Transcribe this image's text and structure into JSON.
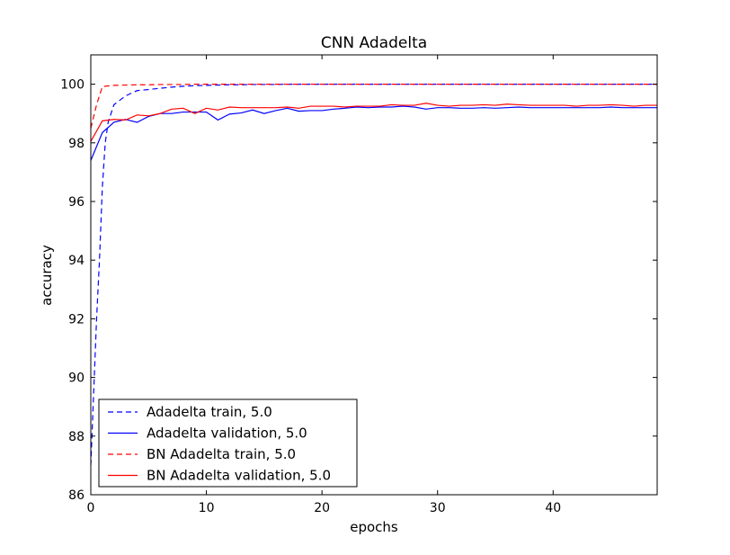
{
  "chart_data": {
    "type": "line",
    "title": "CNN Adadelta",
    "xlabel": "epochs",
    "ylabel": "accuracy",
    "xlim": [
      0,
      49
    ],
    "ylim": [
      86,
      101
    ],
    "xticks": [
      0,
      10,
      20,
      30,
      40
    ],
    "yticks": [
      86,
      88,
      90,
      92,
      94,
      96,
      98,
      100
    ],
    "legend_position": "lower-left",
    "grid": false,
    "x": [
      0,
      1,
      2,
      3,
      4,
      5,
      6,
      7,
      8,
      9,
      10,
      11,
      12,
      13,
      14,
      15,
      16,
      17,
      18,
      19,
      20,
      21,
      22,
      23,
      24,
      25,
      26,
      27,
      28,
      29,
      30,
      31,
      32,
      33,
      34,
      35,
      36,
      37,
      38,
      39,
      40,
      41,
      42,
      43,
      44,
      45,
      46,
      47,
      48,
      49
    ],
    "series": [
      {
        "name": "Adadelta train, 5.0",
        "color": "#0000ff",
        "style": "dashed",
        "x": [
          0,
          0.25,
          0.5,
          0.75,
          1,
          1.25,
          1.5,
          2,
          3,
          4,
          5,
          6,
          7,
          8,
          9,
          10,
          11,
          12,
          13,
          14,
          15,
          16,
          17,
          18,
          19,
          20,
          21,
          22,
          23,
          24,
          25,
          26,
          27,
          28,
          29,
          30,
          31,
          32,
          33,
          34,
          35,
          36,
          37,
          38,
          39,
          40,
          41,
          42,
          43,
          44,
          45,
          46,
          47,
          48,
          49
        ],
        "values": [
          87.0,
          89.5,
          92.0,
          94.0,
          96.5,
          98.0,
          98.7,
          99.3,
          99.6,
          99.78,
          99.82,
          99.86,
          99.9,
          99.93,
          99.95,
          99.96,
          99.97,
          99.98,
          99.98,
          99.99,
          99.99,
          99.99,
          100.0,
          100.0,
          100.0,
          100.0,
          100.0,
          100.0,
          100.0,
          100.0,
          100.0,
          100.0,
          100.0,
          100.0,
          100.0,
          100.0,
          100.0,
          100.0,
          100.0,
          100.0,
          100.0,
          100.0,
          100.0,
          100.0,
          100.0,
          100.0,
          100.0,
          100.0,
          100.0,
          100.0,
          100.0,
          100.0,
          100.0,
          100.0,
          100.0
        ]
      },
      {
        "name": "Adadelta validation, 5.0",
        "color": "#0000ff",
        "style": "solid",
        "values": [
          97.4,
          98.35,
          98.7,
          98.8,
          98.7,
          98.9,
          99.0,
          99.0,
          99.05,
          99.05,
          99.05,
          98.78,
          98.98,
          99.02,
          99.12,
          99.0,
          99.1,
          99.18,
          99.08,
          99.1,
          99.1,
          99.15,
          99.18,
          99.22,
          99.2,
          99.22,
          99.22,
          99.25,
          99.22,
          99.15,
          99.2,
          99.2,
          99.18,
          99.18,
          99.2,
          99.18,
          99.2,
          99.22,
          99.2,
          99.2,
          99.2,
          99.2,
          99.2,
          99.2,
          99.2,
          99.22,
          99.2,
          99.2,
          99.2,
          99.2
        ]
      },
      {
        "name": "BN Adadelta train, 5.0",
        "color": "#ff0000",
        "style": "dashed",
        "x": [
          0,
          0.5,
          1,
          2,
          3,
          4,
          5,
          6,
          7,
          8,
          9,
          10,
          11,
          12,
          13,
          14,
          15,
          16,
          17,
          18,
          19,
          20,
          21,
          22,
          23,
          24,
          25,
          26,
          27,
          28,
          29,
          30,
          31,
          32,
          33,
          34,
          35,
          36,
          37,
          38,
          39,
          40,
          41,
          42,
          43,
          44,
          45,
          46,
          47,
          48,
          49
        ],
        "values": [
          98.5,
          99.3,
          99.92,
          99.96,
          99.97,
          99.98,
          99.98,
          99.99,
          99.99,
          99.99,
          100.0,
          100.0,
          100.0,
          100.0,
          100.0,
          100.0,
          100.0,
          100.0,
          100.0,
          100.0,
          100.0,
          100.0,
          100.0,
          100.0,
          100.0,
          100.0,
          100.0,
          100.0,
          100.0,
          100.0,
          100.0,
          100.0,
          100.0,
          100.0,
          100.0,
          100.0,
          100.0,
          100.0,
          100.0,
          100.0,
          100.0,
          100.0,
          100.0,
          100.0,
          100.0,
          100.0,
          100.0,
          100.0,
          100.0,
          100.0,
          100.0
        ]
      },
      {
        "name": "BN Adadelta validation, 5.0",
        "color": "#ff0000",
        "style": "solid",
        "values": [
          98.05,
          98.75,
          98.8,
          98.78,
          98.95,
          98.92,
          99.0,
          99.15,
          99.18,
          99.0,
          99.18,
          99.12,
          99.22,
          99.2,
          99.2,
          99.2,
          99.2,
          99.22,
          99.18,
          99.25,
          99.25,
          99.25,
          99.22,
          99.25,
          99.25,
          99.25,
          99.3,
          99.28,
          99.28,
          99.35,
          99.28,
          99.25,
          99.28,
          99.28,
          99.3,
          99.28,
          99.32,
          99.3,
          99.28,
          99.28,
          99.28,
          99.28,
          99.25,
          99.28,
          99.28,
          99.3,
          99.28,
          99.25,
          99.28,
          99.28
        ]
      }
    ]
  }
}
